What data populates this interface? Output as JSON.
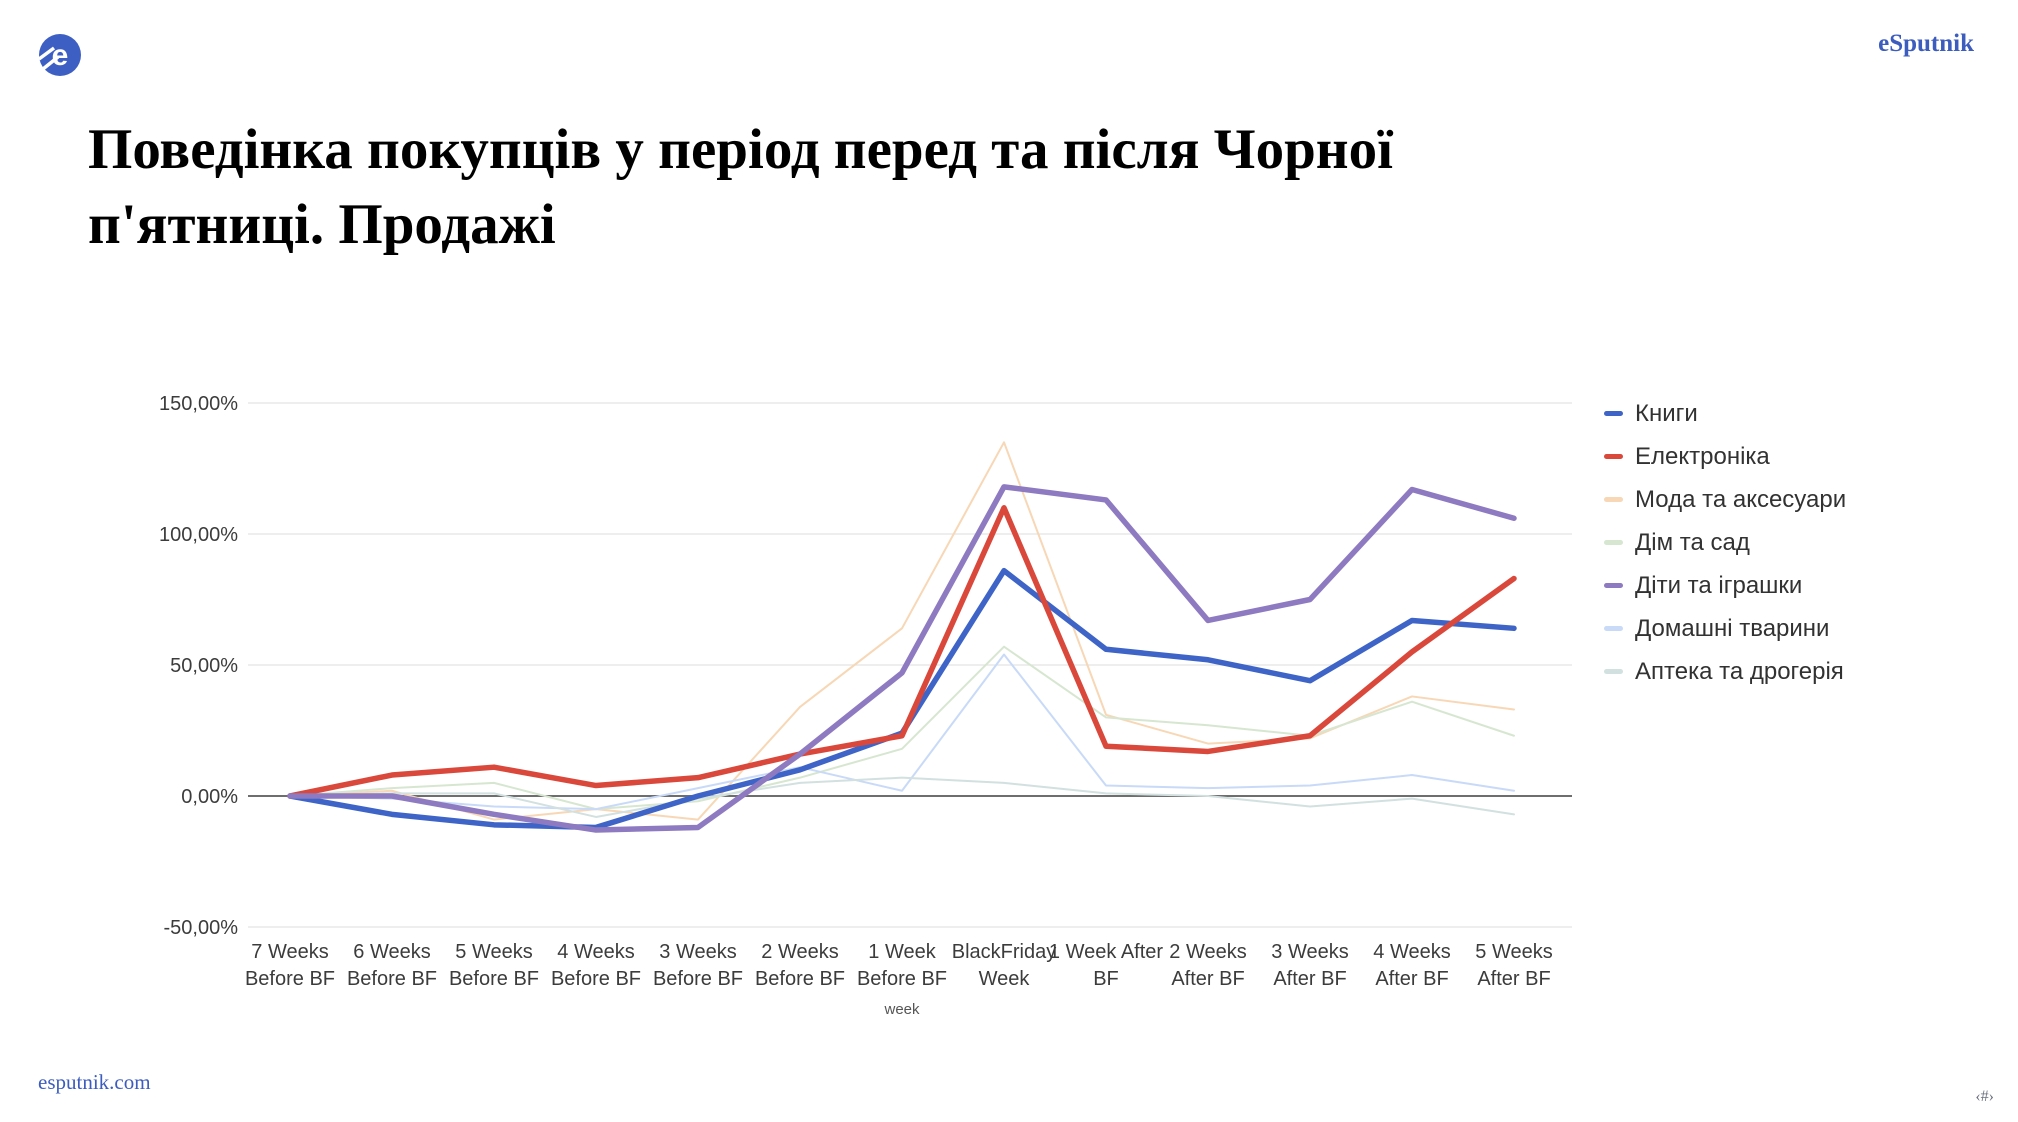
{
  "header": {
    "brand": "eSputnik",
    "logo": "esputnik-logo"
  },
  "title": {
    "line1": "Поведінка покупців у період перед та після Чорної",
    "line2": "п'ятниці. Продажі"
  },
  "footer": {
    "site": "esputnik.com",
    "slide_number": "‹#›"
  },
  "colors": {
    "brand_blue": "#3c5cbe",
    "grid_light": "#e3e3e3",
    "grid_zero": "#6e6e6e",
    "axis_text": "#3c3c3c"
  },
  "chart_data": {
    "type": "line",
    "title": "",
    "xlabel": "week",
    "ylabel": "",
    "ylim": [
      -50,
      150
    ],
    "grid": true,
    "legend_position": "right",
    "y_ticks": [
      {
        "label": "150,00%",
        "value": 150
      },
      {
        "label": "100,00%",
        "value": 100
      },
      {
        "label": "50,00%",
        "value": 50
      },
      {
        "label": "0,00%",
        "value": 0
      },
      {
        "label": "-50,00%",
        "value": -50
      }
    ],
    "categories": [
      [
        "7 Weeks",
        "Before BF"
      ],
      [
        "6 Weeks",
        "Before BF"
      ],
      [
        "5 Weeks",
        "Before BF"
      ],
      [
        "4 Weeks",
        "Before BF"
      ],
      [
        "3 Weeks",
        "Before BF"
      ],
      [
        "2 Weeks",
        "Before BF"
      ],
      [
        "1 Week",
        "Before BF"
      ],
      [
        "BlackFriday",
        "Week"
      ],
      [
        "1 Week After",
        "BF"
      ],
      [
        "2 Weeks",
        "After BF"
      ],
      [
        "3 Weeks",
        "After BF"
      ],
      [
        "4 Weeks",
        "After BF"
      ],
      [
        "5 Weeks",
        "After BF"
      ]
    ],
    "series": [
      {
        "name": "Книги",
        "color": "#3d64c6",
        "width": 5.5,
        "values": [
          0,
          -7,
          -11,
          -12,
          0,
          10,
          24,
          86,
          56,
          52,
          44,
          67,
          64
        ]
      },
      {
        "name": "Електроніка",
        "color": "#d9483a",
        "width": 5.5,
        "values": [
          0,
          8,
          11,
          4,
          7,
          16,
          23,
          110,
          19,
          17,
          23,
          55,
          83
        ]
      },
      {
        "name": "Мода та аксесуари",
        "color": "#f7d7b5",
        "width": 2,
        "values": [
          0,
          2,
          -9,
          -5,
          -9,
          34,
          64,
          135,
          31,
          20,
          22,
          38,
          33
        ]
      },
      {
        "name": "Дім та сад",
        "color": "#d7e6d0",
        "width": 2,
        "values": [
          0,
          3,
          5,
          -5,
          -2,
          7,
          18,
          57,
          30,
          27,
          23,
          36,
          23
        ]
      },
      {
        "name": "Діти та іграшки",
        "color": "#8d7ac0",
        "width": 5.5,
        "values": [
          0,
          0,
          -7,
          -13,
          -12,
          16,
          47,
          118,
          113,
          67,
          75,
          117,
          106
        ]
      },
      {
        "name": "Домашні тварини",
        "color": "#c8daf8",
        "width": 2,
        "values": [
          0,
          -1,
          -4,
          -5,
          3,
          11,
          2,
          54,
          4,
          3,
          4,
          8,
          2
        ]
      },
      {
        "name": "Аптека та дрогерія",
        "color": "#d2e0df",
        "width": 2,
        "values": [
          0,
          1,
          1,
          -8,
          -1,
          5,
          7,
          5,
          1,
          0,
          -4,
          -1,
          -7
        ]
      }
    ]
  }
}
